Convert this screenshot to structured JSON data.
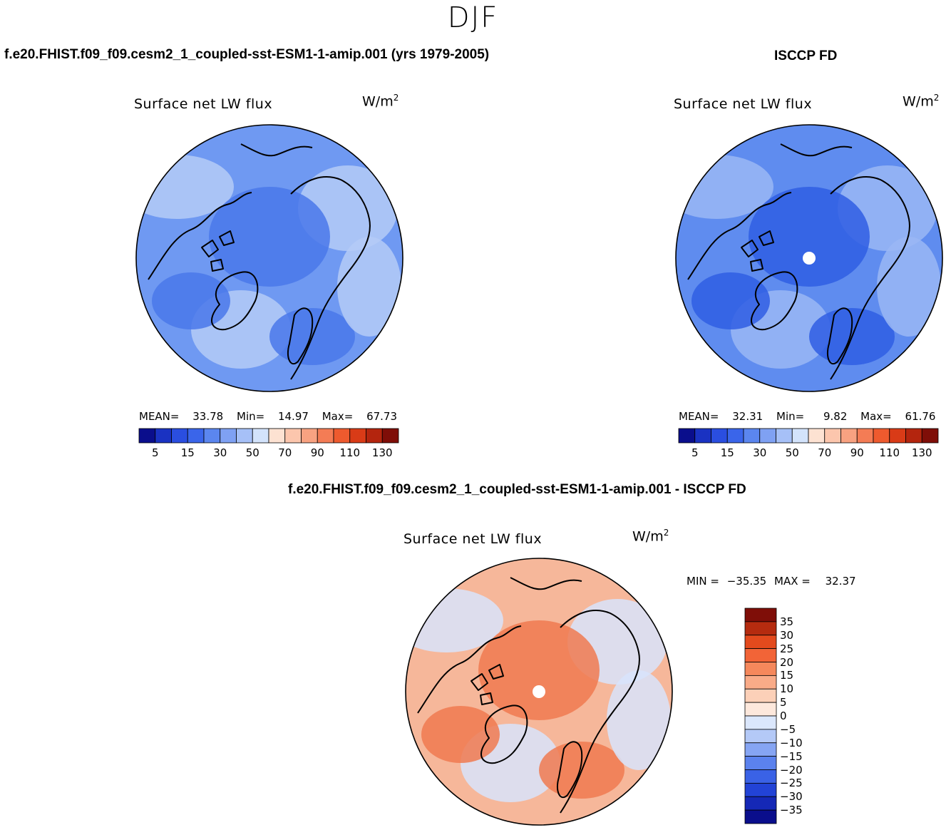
{
  "figure": {
    "season": "DJF"
  },
  "panels": [
    {
      "id": "model",
      "header": "f.e20.FHIST.f09_f09.cesm2_1_coupled-sst-ESM1-1-amip.001 (yrs 1979-2005)",
      "variable": "Surface net LW flux",
      "units_base": "W/m",
      "units_exp": "2",
      "stats": {
        "mean_label": "MEAN=",
        "mean": "33.78",
        "min_label": "Min=",
        "min": "14.97",
        "max_label": "Max=",
        "max": "67.73"
      },
      "colors": {
        "ocean_mid": "#6f99f2",
        "land_light": "#b5cbf7",
        "center": "#4a78ea"
      }
    },
    {
      "id": "obs",
      "header": "ISCCP FD",
      "variable": "Surface net LW flux",
      "units_base": "W/m",
      "units_exp": "2",
      "stats": {
        "mean_label": "MEAN=",
        "mean": "32.31",
        "min_label": "Min=",
        "min": "9.82",
        "max_label": "Max=",
        "max": "61.76"
      },
      "colors": {
        "ocean_mid": "#5f8cef",
        "land_light": "#9ab7f4",
        "center": "#2f5ee3"
      }
    },
    {
      "id": "diff",
      "header": "f.e20.FHIST.f09_f09.cesm2_1_coupled-sst-ESM1-1-amip.001 - ISCCP FD",
      "variable": "Surface net LW flux",
      "units_base": "W/m",
      "units_exp": "2",
      "stats": {
        "min_label": "MIN =",
        "min": "−35.35",
        "max_label": "MAX =",
        "max": "32.37"
      },
      "colors": {
        "ocean_mid": "#f6b79a",
        "land_light": "#d8e4fb",
        "center": "#f07a50"
      }
    }
  ],
  "colorbar_abs": {
    "colors": [
      "#0a0e8c",
      "#1a32c2",
      "#2a4ee0",
      "#3a65ea",
      "#5b86ef",
      "#7fa1f3",
      "#a6c0f7",
      "#d3e3fb",
      "#fde2d2",
      "#fcc6ad",
      "#f8a281",
      "#f47c55",
      "#ee5a2e",
      "#d93b17",
      "#b4250e",
      "#7f0e08"
    ],
    "ticks": [
      "5",
      "15",
      "30",
      "50",
      "70",
      "90",
      "110",
      "130"
    ]
  },
  "colorbar_diff": {
    "colors": [
      "#0a0e8c",
      "#1528b6",
      "#2243d6",
      "#3a62e6",
      "#5b82ee",
      "#86a5f3",
      "#b4c9f7",
      "#dbe7fc",
      "#fde8dc",
      "#fcd0b8",
      "#f9ab88",
      "#f5885c",
      "#f26437",
      "#e34a1d",
      "#b52b0f",
      "#7f0e08"
    ],
    "ticks": [
      "35",
      "30",
      "25",
      "20",
      "15",
      "10",
      "5",
      "0",
      "−5",
      "−10",
      "−15",
      "−20",
      "−25",
      "−30",
      "−35"
    ]
  }
}
